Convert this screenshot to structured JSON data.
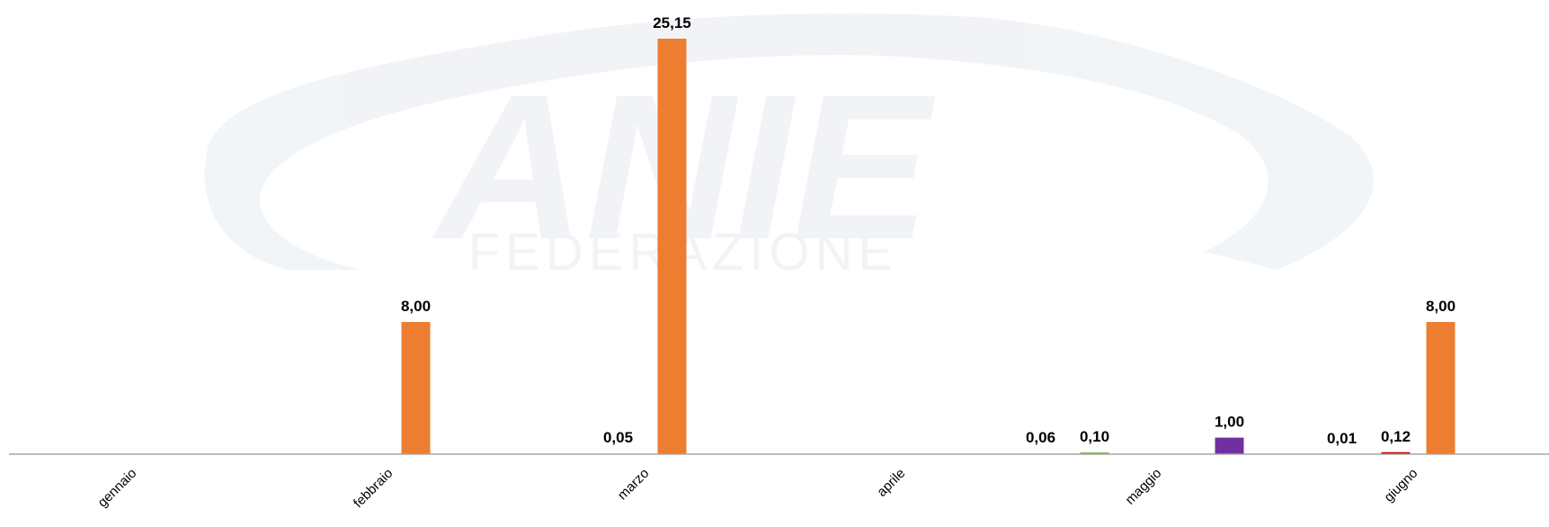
{
  "watermark": {
    "brand": "ANIE",
    "subtitle": "FEDERAZIONE"
  },
  "chart_data": {
    "type": "bar",
    "categories": [
      "gennaio",
      "febbraio",
      "marzo",
      "aprile",
      "maggio",
      "giugno"
    ],
    "series": [
      {
        "color": "#70AD47",
        "values": [
          null,
          null,
          null,
          null,
          0.1,
          null
        ]
      },
      {
        "color": "#C00000",
        "values": [
          null,
          null,
          null,
          null,
          null,
          0.12
        ]
      },
      {
        "color": "#ED7D31",
        "values": [
          null,
          8.0,
          25.15,
          null,
          null,
          8.0
        ]
      },
      {
        "color": "#7030A0",
        "values": [
          null,
          null,
          null,
          null,
          1.0,
          null
        ]
      }
    ],
    "data_labels": {
      "febbraio": [
        "8,00"
      ],
      "marzo": [
        "0,05",
        "25,15"
      ],
      "maggio": [
        "0,06",
        "0,10",
        "1,00"
      ],
      "giugno": [
        "0,01",
        "0,12",
        "8,00"
      ]
    },
    "data_label_values": {
      "febbraio": [
        8.0
      ],
      "marzo": [
        0.05,
        25.15
      ],
      "maggio": [
        0.06,
        0.1,
        1.0
      ],
      "giugno": [
        0.01,
        0.12,
        8.0
      ]
    },
    "ylim": [
      0,
      25.15
    ],
    "grid": false,
    "legend": "none",
    "axis_color": "#A6A6A6",
    "label_color": "#000000"
  }
}
